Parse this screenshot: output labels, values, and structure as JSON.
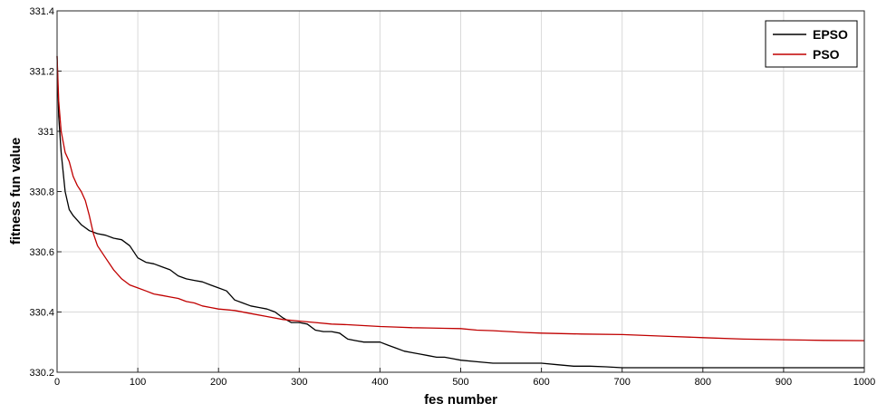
{
  "chart_data": {
    "type": "line",
    "title": "",
    "xlabel": "fes number",
    "ylabel": "fitness fun value",
    "xlim": [
      0,
      1000
    ],
    "ylim": [
      330.2,
      331.4
    ],
    "xticks": [
      "0",
      "100",
      "200",
      "300",
      "400",
      "500",
      "600",
      "700",
      "800",
      "900",
      "1000"
    ],
    "yticks": [
      "330.2",
      "330.4",
      "330.6",
      "330.8",
      "331",
      "331.2",
      "331.4"
    ],
    "grid": true,
    "legend_position": "top-right",
    "series": [
      {
        "name": "EPSO",
        "color": "#000000",
        "x": [
          0,
          2,
          5,
          10,
          15,
          20,
          30,
          40,
          50,
          60,
          70,
          80,
          90,
          100,
          110,
          120,
          130,
          140,
          150,
          160,
          170,
          180,
          190,
          200,
          210,
          220,
          230,
          240,
          250,
          260,
          270,
          280,
          290,
          300,
          310,
          320,
          330,
          340,
          350,
          360,
          370,
          380,
          390,
          400,
          410,
          420,
          430,
          440,
          450,
          460,
          470,
          480,
          490,
          500,
          520,
          540,
          560,
          580,
          600,
          620,
          640,
          660,
          680,
          700,
          750,
          800,
          850,
          900,
          950,
          1000
        ],
        "y": [
          331.25,
          331.05,
          330.93,
          330.8,
          330.74,
          330.72,
          330.69,
          330.67,
          330.66,
          330.655,
          330.645,
          330.64,
          330.62,
          330.58,
          330.565,
          330.56,
          330.55,
          330.54,
          330.52,
          330.51,
          330.505,
          330.5,
          330.49,
          330.48,
          330.47,
          330.44,
          330.43,
          330.42,
          330.415,
          330.41,
          330.4,
          330.38,
          330.365,
          330.365,
          330.36,
          330.34,
          330.335,
          330.335,
          330.33,
          330.31,
          330.305,
          330.3,
          330.3,
          330.3,
          330.29,
          330.28,
          330.27,
          330.265,
          330.26,
          330.255,
          330.25,
          330.25,
          330.245,
          330.24,
          330.235,
          330.23,
          330.23,
          330.23,
          330.23,
          330.225,
          330.22,
          330.22,
          330.218,
          330.215,
          330.215,
          330.215,
          330.215,
          330.215,
          330.215,
          330.215
        ]
      },
      {
        "name": "PSO",
        "color": "#c00000",
        "x": [
          0,
          2,
          5,
          10,
          15,
          20,
          25,
          30,
          35,
          40,
          45,
          50,
          60,
          70,
          80,
          90,
          100,
          110,
          120,
          130,
          140,
          150,
          160,
          170,
          180,
          190,
          200,
          220,
          240,
          260,
          280,
          300,
          320,
          340,
          360,
          380,
          400,
          420,
          440,
          460,
          480,
          500,
          520,
          540,
          560,
          580,
          600,
          650,
          700,
          750,
          800,
          850,
          900,
          950,
          1000
        ],
        "y": [
          331.25,
          331.1,
          331.0,
          330.93,
          330.9,
          330.85,
          330.82,
          330.8,
          330.77,
          330.72,
          330.66,
          330.62,
          330.58,
          330.54,
          330.51,
          330.49,
          330.48,
          330.47,
          330.46,
          330.455,
          330.45,
          330.445,
          330.435,
          330.43,
          330.42,
          330.415,
          330.41,
          330.405,
          330.395,
          330.385,
          330.375,
          330.37,
          330.365,
          330.36,
          330.358,
          330.355,
          330.352,
          330.35,
          330.348,
          330.347,
          330.346,
          330.345,
          330.34,
          330.338,
          330.335,
          330.332,
          330.33,
          330.327,
          330.325,
          330.32,
          330.315,
          330.31,
          330.308,
          330.306,
          330.305
        ]
      }
    ]
  }
}
